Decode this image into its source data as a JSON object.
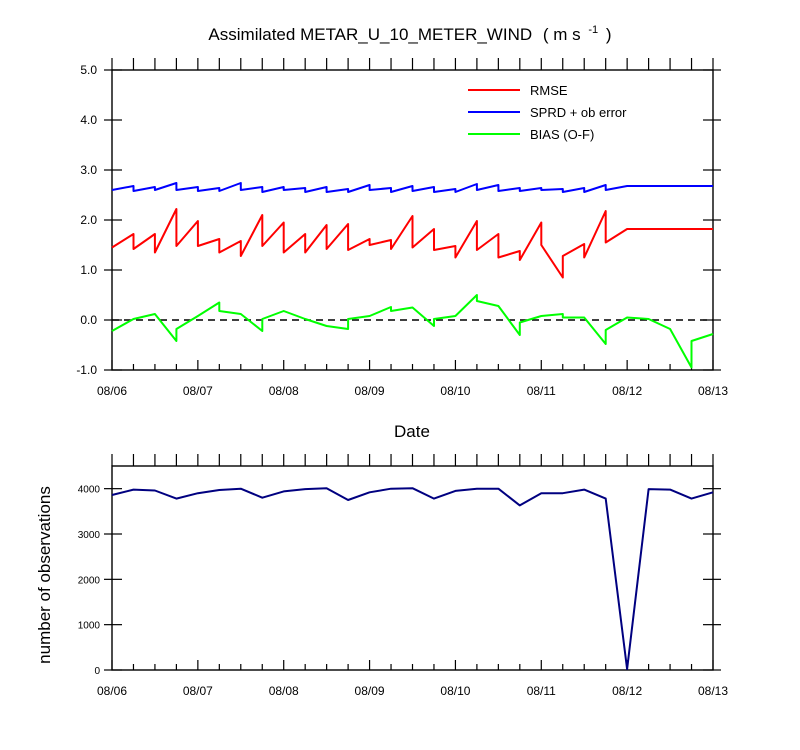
{
  "chart_data": [
    {
      "type": "line",
      "title": "Assimilated METAR_U_10_METER_WIND",
      "title_units": "( m s",
      "title_units_sup": "-1",
      "title_units_close": ")",
      "xlabel": "Date",
      "ylabel": "",
      "xlim": [
        0,
        7
      ],
      "ylim": [
        -1.0,
        5.0
      ],
      "xticks": [
        0,
        1,
        2,
        3,
        4,
        5,
        6,
        7
      ],
      "xtick_labels": [
        "08/06",
        "08/07",
        "08/08",
        "08/09",
        "08/10",
        "08/11",
        "08/12",
        "08/13"
      ],
      "yticks": [
        -1.0,
        0.0,
        1.0,
        2.0,
        3.0,
        4.0,
        5.0
      ],
      "ytick_labels": [
        "-1.0",
        "0.0",
        "1.0",
        "2.0",
        "3.0",
        "4.0",
        "5.0"
      ],
      "reference_line": 0.0,
      "legend": {
        "placement": "top-right"
      },
      "series": [
        {
          "name": "RMSE",
          "color": "#ff0000",
          "x": [
            0.0,
            0.25,
            0.25,
            0.5,
            0.5,
            0.75,
            0.75,
            1.0,
            1.0,
            1.25,
            1.25,
            1.5,
            1.5,
            1.75,
            1.75,
            2.0,
            2.0,
            2.25,
            2.25,
            2.5,
            2.5,
            2.75,
            2.75,
            3.0,
            3.0,
            3.25,
            3.25,
            3.5,
            3.5,
            3.75,
            3.75,
            4.0,
            4.0,
            4.25,
            4.25,
            4.5,
            4.5,
            4.75,
            4.75,
            5.0,
            5.0,
            5.25,
            5.25,
            5.5,
            5.5,
            5.75,
            5.75,
            6.0,
            6.25,
            6.25,
            6.5,
            6.5,
            6.75,
            6.75,
            7.0
          ],
          "y": [
            1.45,
            1.72,
            1.42,
            1.72,
            1.35,
            2.22,
            1.48,
            1.98,
            1.48,
            1.62,
            1.35,
            1.58,
            1.28,
            2.1,
            1.48,
            1.95,
            1.35,
            1.72,
            1.35,
            1.9,
            1.42,
            1.92,
            1.4,
            1.62,
            1.5,
            1.6,
            1.42,
            2.08,
            1.45,
            1.82,
            1.4,
            1.48,
            1.25,
            1.98,
            1.4,
            1.72,
            1.25,
            1.38,
            1.2,
            1.95,
            1.5,
            0.85,
            1.28,
            1.52,
            1.25,
            2.18,
            1.55,
            1.82,
            1.82,
            1.82,
            1.82,
            1.82,
            1.82,
            1.82,
            1.82
          ],
          "y_note": "alternating analysis/forecast sawtooth"
        },
        {
          "name": "SPRD + ob error",
          "color": "#0000ff",
          "x": [
            0.0,
            0.25,
            0.25,
            0.5,
            0.5,
            0.75,
            0.75,
            1.0,
            1.0,
            1.25,
            1.25,
            1.5,
            1.5,
            1.75,
            1.75,
            2.0,
            2.0,
            2.25,
            2.25,
            2.5,
            2.5,
            2.75,
            2.75,
            3.0,
            3.0,
            3.25,
            3.25,
            3.5,
            3.5,
            3.75,
            3.75,
            4.0,
            4.0,
            4.25,
            4.25,
            4.5,
            4.5,
            4.75,
            4.75,
            5.0,
            5.0,
            5.25,
            5.25,
            5.5,
            5.5,
            5.75,
            5.75,
            6.0,
            6.25,
            6.25,
            6.5,
            6.5,
            6.75,
            6.75,
            7.0
          ],
          "y": [
            2.6,
            2.68,
            2.58,
            2.66,
            2.6,
            2.74,
            2.6,
            2.66,
            2.58,
            2.64,
            2.58,
            2.74,
            2.6,
            2.66,
            2.56,
            2.66,
            2.6,
            2.64,
            2.56,
            2.66,
            2.56,
            2.62,
            2.56,
            2.7,
            2.6,
            2.64,
            2.56,
            2.68,
            2.58,
            2.66,
            2.56,
            2.62,
            2.56,
            2.72,
            2.6,
            2.7,
            2.58,
            2.64,
            2.58,
            2.64,
            2.6,
            2.62,
            2.56,
            2.64,
            2.56,
            2.7,
            2.6,
            2.68,
            2.68,
            2.68,
            2.68,
            2.68,
            2.68,
            2.68,
            2.68
          ]
        },
        {
          "name": "BIAS (O-F)",
          "color": "#00ff00",
          "x": [
            0.0,
            0.25,
            0.5,
            0.75,
            0.75,
            1.0,
            1.25,
            1.25,
            1.5,
            1.75,
            1.75,
            2.0,
            2.25,
            2.25,
            2.5,
            2.75,
            2.75,
            3.0,
            3.25,
            3.25,
            3.5,
            3.75,
            3.75,
            4.0,
            4.25,
            4.25,
            4.5,
            4.75,
            4.75,
            5.0,
            5.25,
            5.25,
            5.5,
            5.75,
            5.75,
            6.0,
            6.25,
            6.5,
            6.75,
            6.75,
            7.0
          ],
          "y": [
            -0.22,
            0.02,
            0.12,
            -0.42,
            -0.18,
            0.08,
            0.35,
            0.18,
            0.12,
            -0.22,
            0.02,
            0.18,
            0.02,
            0.02,
            -0.12,
            -0.18,
            0.02,
            0.08,
            0.26,
            0.18,
            0.25,
            -0.12,
            0.02,
            0.08,
            0.5,
            0.38,
            0.28,
            -0.3,
            -0.05,
            0.08,
            0.12,
            0.05,
            0.05,
            -0.48,
            -0.2,
            0.05,
            0.02,
            -0.18,
            -0.95,
            -0.42,
            -0.28
          ]
        }
      ]
    },
    {
      "type": "line",
      "title": "",
      "xlabel": "",
      "ylabel": "number of observations",
      "xlim": [
        0,
        7
      ],
      "ylim": [
        0,
        4500
      ],
      "xticks": [
        0,
        1,
        2,
        3,
        4,
        5,
        6,
        7
      ],
      "xtick_labels": [
        "08/06",
        "08/07",
        "08/08",
        "08/09",
        "08/10",
        "08/11",
        "08/12",
        "08/13"
      ],
      "yticks": [
        0,
        1000,
        2000,
        3000,
        4000
      ],
      "ytick_labels": [
        "0",
        "1000",
        "2000",
        "3000",
        "4000"
      ],
      "series": [
        {
          "name": "observations",
          "color": "#000080",
          "x": [
            0.0,
            0.25,
            0.5,
            0.75,
            1.0,
            1.25,
            1.5,
            1.75,
            2.0,
            2.25,
            2.5,
            2.75,
            3.0,
            3.25,
            3.5,
            3.75,
            4.0,
            4.25,
            4.5,
            4.75,
            5.0,
            5.25,
            5.5,
            5.75,
            6.0,
            6.25,
            6.5,
            6.75,
            7.0
          ],
          "y": [
            3860,
            3980,
            3960,
            3780,
            3900,
            3970,
            4000,
            3800,
            3940,
            3990,
            4010,
            3750,
            3920,
            4000,
            4010,
            3780,
            3950,
            4000,
            4000,
            3630,
            3900,
            3900,
            3980,
            3780,
            20,
            3990,
            3980,
            3780,
            3920
          ]
        }
      ]
    }
  ]
}
